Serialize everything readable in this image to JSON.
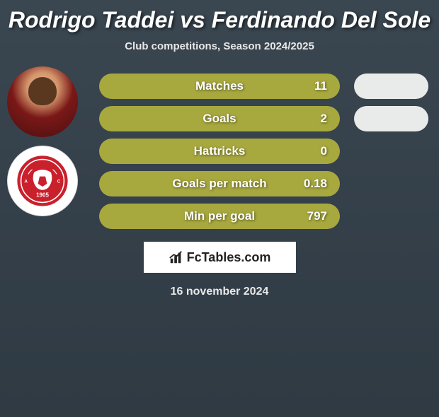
{
  "title": "Rodrigo Taddei vs Ferdinando Del Sole",
  "subtitle": "Club competitions, Season 2024/2025",
  "date": "16 november 2024",
  "logo_text": "FcTables.com",
  "bar_color": "#a7a83e",
  "pill_color": "#e9eaea",
  "stats": [
    {
      "label": "Matches",
      "value": "11",
      "has_pill": true
    },
    {
      "label": "Goals",
      "value": "2",
      "has_pill": true
    },
    {
      "label": "Hattricks",
      "value": "0",
      "has_pill": false
    },
    {
      "label": "Goals per match",
      "value": "0.18",
      "has_pill": false
    },
    {
      "label": "Min per goal",
      "value": "797",
      "has_pill": false
    }
  ],
  "avatars": [
    {
      "name": "player-avatar-taddei",
      "type": "player"
    },
    {
      "name": "club-badge-perugia",
      "type": "badge"
    }
  ]
}
